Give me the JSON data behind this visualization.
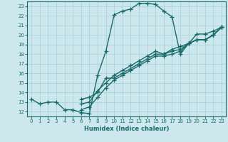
{
  "title": "",
  "xlabel": "Humidex (Indice chaleur)",
  "bg_color": "#cce8ec",
  "grid_color": "#aad4d8",
  "line_color": "#1a6b6b",
  "marker": "+",
  "markersize": 4,
  "linewidth": 1.0,
  "xlim": [
    -0.5,
    23.5
  ],
  "ylim": [
    11.5,
    23.5
  ],
  "xticks": [
    0,
    1,
    2,
    3,
    4,
    5,
    6,
    7,
    8,
    9,
    10,
    11,
    12,
    13,
    14,
    15,
    16,
    17,
    18,
    19,
    20,
    21,
    22,
    23
  ],
  "yticks": [
    12,
    13,
    14,
    15,
    16,
    17,
    18,
    19,
    20,
    21,
    22,
    23
  ],
  "series_main": [
    [
      0,
      13.3
    ],
    [
      1,
      12.8
    ],
    [
      2,
      13.0
    ],
    [
      3,
      13.0
    ],
    [
      4,
      12.2
    ],
    [
      5,
      12.2
    ],
    [
      6,
      11.9
    ],
    [
      7,
      11.8
    ],
    [
      8,
      15.8
    ],
    [
      9,
      18.3
    ],
    [
      10,
      22.1
    ],
    [
      11,
      22.5
    ],
    [
      12,
      22.7
    ],
    [
      13,
      23.3
    ],
    [
      14,
      23.3
    ],
    [
      15,
      23.2
    ],
    [
      16,
      22.5
    ],
    [
      17,
      21.9
    ],
    [
      18,
      18.0
    ],
    [
      19,
      19.1
    ],
    [
      20,
      20.1
    ],
    [
      21,
      20.1
    ],
    [
      22,
      20.4
    ],
    [
      23,
      20.8
    ]
  ],
  "series_b1": [
    [
      6,
      13.3
    ],
    [
      7,
      13.5
    ],
    [
      8,
      14.0
    ],
    [
      9,
      15.5
    ],
    [
      10,
      15.5
    ],
    [
      11,
      16.0
    ],
    [
      12,
      16.5
    ],
    [
      13,
      17.0
    ],
    [
      14,
      17.5
    ],
    [
      15,
      18.0
    ],
    [
      16,
      18.0
    ],
    [
      17,
      18.3
    ],
    [
      18,
      18.5
    ],
    [
      19,
      19.1
    ],
    [
      20,
      19.5
    ],
    [
      21,
      19.5
    ],
    [
      22,
      20.0
    ],
    [
      23,
      20.8
    ]
  ],
  "series_b2": [
    [
      6,
      12.8
    ],
    [
      7,
      13.0
    ],
    [
      8,
      14.2
    ],
    [
      9,
      15.0
    ],
    [
      10,
      15.8
    ],
    [
      11,
      16.3
    ],
    [
      12,
      16.8
    ],
    [
      13,
      17.3
    ],
    [
      14,
      17.8
    ],
    [
      15,
      18.3
    ],
    [
      16,
      18.0
    ],
    [
      17,
      18.5
    ],
    [
      18,
      18.8
    ],
    [
      19,
      19.1
    ],
    [
      20,
      19.5
    ],
    [
      21,
      19.5
    ],
    [
      22,
      20.0
    ],
    [
      23,
      20.8
    ]
  ],
  "series_b3": [
    [
      6,
      12.2
    ],
    [
      7,
      12.5
    ],
    [
      8,
      13.5
    ],
    [
      9,
      14.5
    ],
    [
      10,
      15.3
    ],
    [
      11,
      15.8
    ],
    [
      12,
      16.3
    ],
    [
      13,
      16.8
    ],
    [
      14,
      17.3
    ],
    [
      15,
      17.8
    ],
    [
      16,
      17.8
    ],
    [
      17,
      18.0
    ],
    [
      18,
      18.3
    ],
    [
      19,
      19.1
    ],
    [
      20,
      19.5
    ],
    [
      21,
      19.5
    ],
    [
      22,
      20.0
    ],
    [
      23,
      20.8
    ]
  ]
}
